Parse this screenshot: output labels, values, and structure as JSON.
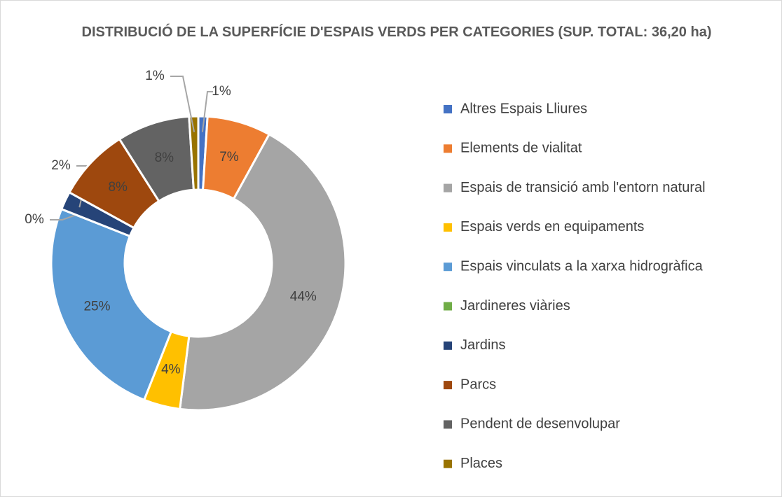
{
  "chart_data": {
    "type": "donut",
    "title": "DISTRIBUCIÓ DE LA SUPERFÍCIE D'ESPAIS VERDS PER CATEGORIES (SUP. TOTAL: 36,20 ha)",
    "categories": [
      "Altres Espais Lliures",
      "Elements de vialitat",
      "Espais de transició amb l'entorn natural",
      "Espais verds en equipaments",
      "Espais vinculats a la xarxa hidrogràfica",
      "Jardineres viàries",
      "Jardins",
      "Parcs",
      "Pendent de desenvolupar",
      "Places"
    ],
    "values": [
      1,
      7,
      44,
      4,
      25,
      0,
      2,
      8,
      8,
      1
    ],
    "value_labels": [
      "1%",
      "7%",
      "44%",
      "4%",
      "25%",
      "0%",
      "2%",
      "8%",
      "8%",
      "1%"
    ],
    "colors": [
      "#4472c4",
      "#ed7d31",
      "#a5a5a5",
      "#ffc000",
      "#5b9bd5",
      "#70ad47",
      "#264478",
      "#9e480e",
      "#636363",
      "#997300"
    ],
    "legend": "right"
  }
}
